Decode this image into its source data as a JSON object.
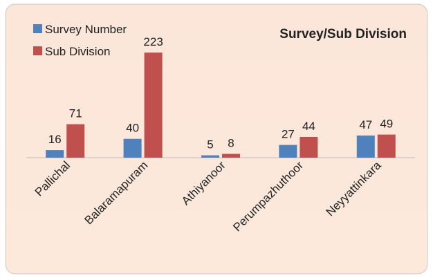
{
  "chart_data": {
    "type": "bar",
    "title": "Survey/Sub Division",
    "categories": [
      "Pallichal",
      "Balaramapuram",
      "Athiyanoor",
      "Perumpazhuthoor",
      "Neyyattinkara"
    ],
    "series": [
      {
        "name": "Survey Number",
        "color": "#4f81bd",
        "values": [
          16,
          40,
          5,
          27,
          47
        ]
      },
      {
        "name": "Sub Division",
        "color": "#c0504d",
        "values": [
          71,
          223,
          8,
          44,
          49
        ]
      }
    ],
    "legend": "top-left"
  }
}
